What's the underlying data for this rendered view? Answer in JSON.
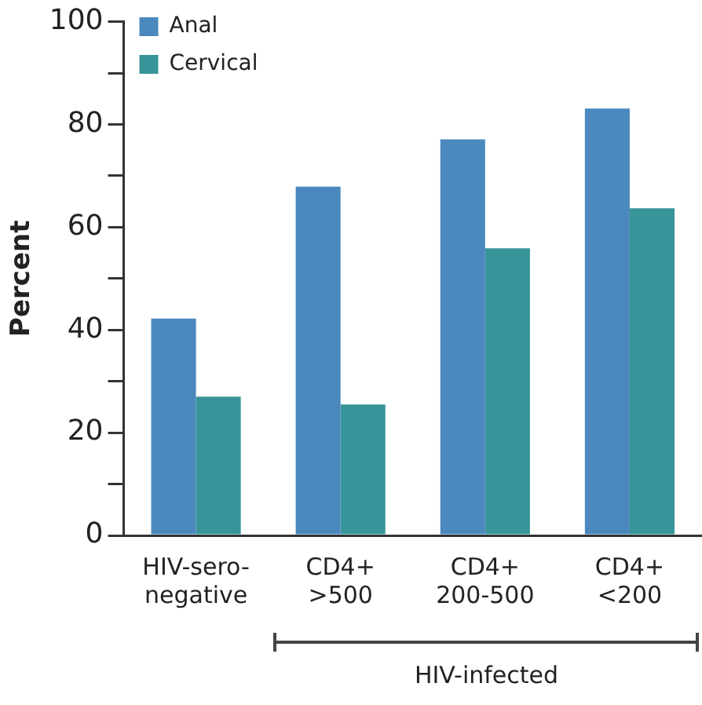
{
  "chart_data": {
    "type": "bar",
    "ylabel": "Percent",
    "categories": [
      "HIV-sero-\nnegative",
      "CD4+\n>500",
      "CD4+\n200-500",
      "CD4+\n<200"
    ],
    "series": [
      {
        "name": "Anal",
        "color": "#4a88be",
        "values": [
          42.2,
          67.9,
          77.1,
          83.1
        ]
      },
      {
        "name": "Cervical",
        "color": "#37959a",
        "values": [
          27.0,
          25.5,
          55.9,
          63.7
        ]
      }
    ],
    "ylim": [
      0,
      100
    ],
    "yticks": [
      0,
      {
        "value": 10,
        "label": null
      },
      20,
      {
        "value": 30,
        "label": null
      },
      40,
      {
        "value": 50,
        "label": null
      },
      60,
      {
        "value": 70,
        "label": null
      },
      80,
      {
        "value": 90,
        "label": null
      },
      100
    ],
    "annotations": [
      "HIV-infected"
    ],
    "grid": false,
    "legend": "top left"
  }
}
